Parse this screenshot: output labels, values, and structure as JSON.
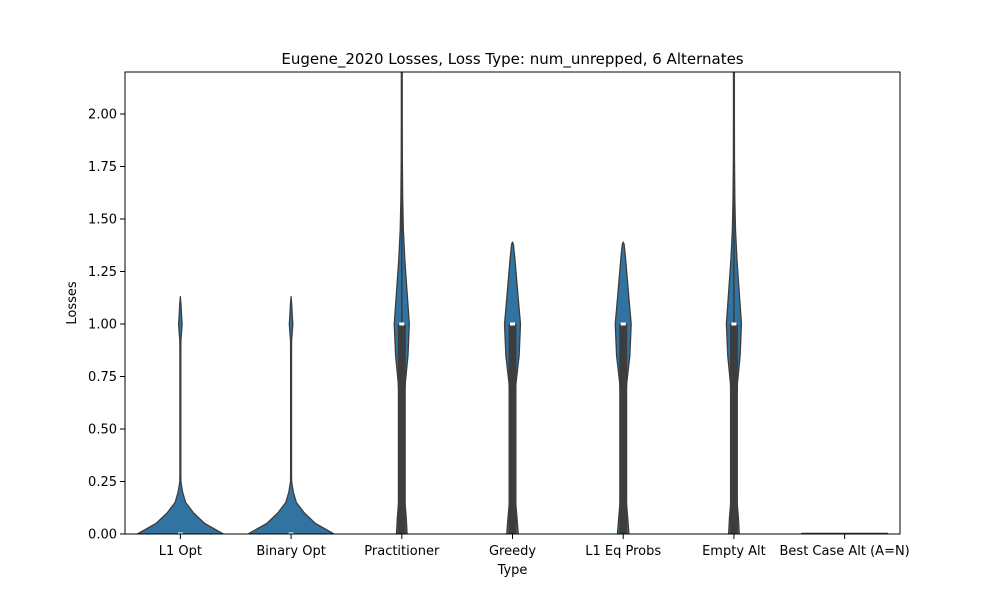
{
  "chart_data": {
    "type": "violin",
    "title": "Eugene_2020 Losses, Loss Type: num_unrepped, 6 Alternates",
    "xlabel": "Type",
    "ylabel": "Losses",
    "ylim": [
      0,
      2.2
    ],
    "yticks": [
      "0.00",
      "0.25",
      "0.50",
      "0.75",
      "1.00",
      "1.25",
      "1.50",
      "1.75",
      "2.00"
    ],
    "fill_color": "#3274a1",
    "edge_color": "#3d3d3d",
    "categories": [
      "L1 Opt",
      "Binary Opt",
      "Practitioner",
      "Greedy",
      "L1 Eq Probs",
      "Empty Alt",
      "Best Case Alt (A=N)"
    ],
    "violins": [
      {
        "category": "L1 Opt",
        "median": 0,
        "q1": 0,
        "q3": 0,
        "whisker_low": 0,
        "whisker_high": 0,
        "density": [
          [
            0,
            0.97
          ],
          [
            0.05,
            0.55
          ],
          [
            0.1,
            0.3
          ],
          [
            0.15,
            0.12
          ],
          [
            0.2,
            0.05
          ],
          [
            0.25,
            0.012
          ],
          [
            0.3,
            0.01
          ],
          [
            0.5,
            0.01
          ],
          [
            0.85,
            0.01
          ],
          [
            0.92,
            0.012
          ],
          [
            0.97,
            0.03
          ],
          [
            1.0,
            0.04
          ],
          [
            1.03,
            0.03
          ],
          [
            1.1,
            0.012
          ],
          [
            1.13,
            0
          ]
        ]
      },
      {
        "category": "Binary Opt",
        "median": 0,
        "q1": 0,
        "q3": 0,
        "whisker_low": 0,
        "whisker_high": 0,
        "density": [
          [
            0,
            0.97
          ],
          [
            0.05,
            0.55
          ],
          [
            0.1,
            0.3
          ],
          [
            0.15,
            0.12
          ],
          [
            0.2,
            0.05
          ],
          [
            0.25,
            0.012
          ],
          [
            0.3,
            0.01
          ],
          [
            0.5,
            0.01
          ],
          [
            0.85,
            0.01
          ],
          [
            0.92,
            0.012
          ],
          [
            0.97,
            0.03
          ],
          [
            1.0,
            0.04
          ],
          [
            1.03,
            0.03
          ],
          [
            1.1,
            0.012
          ],
          [
            1.13,
            0
          ]
        ]
      },
      {
        "category": "Practitioner",
        "median": 1,
        "q1": 0,
        "q3": 1,
        "whisker_low": 0,
        "whisker_high": 2,
        "density": [
          [
            0,
            0.12
          ],
          [
            0.08,
            0.1
          ],
          [
            0.18,
            0.06
          ],
          [
            0.3,
            0.04
          ],
          [
            0.45,
            0.04
          ],
          [
            0.6,
            0.05
          ],
          [
            0.72,
            0.08
          ],
          [
            0.85,
            0.14
          ],
          [
            1.0,
            0.17
          ],
          [
            1.15,
            0.12
          ],
          [
            1.3,
            0.07
          ],
          [
            1.45,
            0.035
          ],
          [
            1.6,
            0.02
          ],
          [
            1.8,
            0.012
          ],
          [
            2.0,
            0.01
          ],
          [
            2.2,
            0.01
          ]
        ]
      },
      {
        "category": "Greedy",
        "median": 1,
        "q1": 0,
        "q3": 1,
        "whisker_low": 0,
        "whisker_high": 1,
        "density": [
          [
            0,
            0.13
          ],
          [
            0.08,
            0.1
          ],
          [
            0.18,
            0.06
          ],
          [
            0.3,
            0.04
          ],
          [
            0.45,
            0.04
          ],
          [
            0.6,
            0.05
          ],
          [
            0.72,
            0.08
          ],
          [
            0.85,
            0.15
          ],
          [
            1.0,
            0.18
          ],
          [
            1.12,
            0.13
          ],
          [
            1.22,
            0.09
          ],
          [
            1.32,
            0.05
          ],
          [
            1.38,
            0.02
          ],
          [
            1.39,
            0
          ]
        ]
      },
      {
        "category": "L1 Eq Probs",
        "median": 1,
        "q1": 0,
        "q3": 1,
        "whisker_low": 0,
        "whisker_high": 1,
        "density": [
          [
            0,
            0.13
          ],
          [
            0.08,
            0.1
          ],
          [
            0.18,
            0.06
          ],
          [
            0.3,
            0.04
          ],
          [
            0.45,
            0.04
          ],
          [
            0.6,
            0.05
          ],
          [
            0.72,
            0.08
          ],
          [
            0.85,
            0.15
          ],
          [
            1.0,
            0.18
          ],
          [
            1.12,
            0.13
          ],
          [
            1.22,
            0.09
          ],
          [
            1.32,
            0.05
          ],
          [
            1.38,
            0.02
          ],
          [
            1.39,
            0
          ]
        ]
      },
      {
        "category": "Empty Alt",
        "median": 1,
        "q1": 0,
        "q3": 1,
        "whisker_low": 0,
        "whisker_high": 2,
        "density": [
          [
            0,
            0.12
          ],
          [
            0.08,
            0.1
          ],
          [
            0.18,
            0.06
          ],
          [
            0.3,
            0.04
          ],
          [
            0.45,
            0.04
          ],
          [
            0.6,
            0.05
          ],
          [
            0.72,
            0.08
          ],
          [
            0.85,
            0.14
          ],
          [
            1.0,
            0.17
          ],
          [
            1.15,
            0.12
          ],
          [
            1.3,
            0.07
          ],
          [
            1.45,
            0.035
          ],
          [
            1.6,
            0.02
          ],
          [
            1.8,
            0.012
          ],
          [
            2.0,
            0.01
          ],
          [
            2.2,
            0.01
          ]
        ]
      },
      {
        "category": "Best Case Alt (A=N)",
        "median": 0,
        "q1": 0,
        "q3": 0,
        "whisker_low": 0,
        "whisker_high": 0,
        "density": []
      }
    ]
  }
}
